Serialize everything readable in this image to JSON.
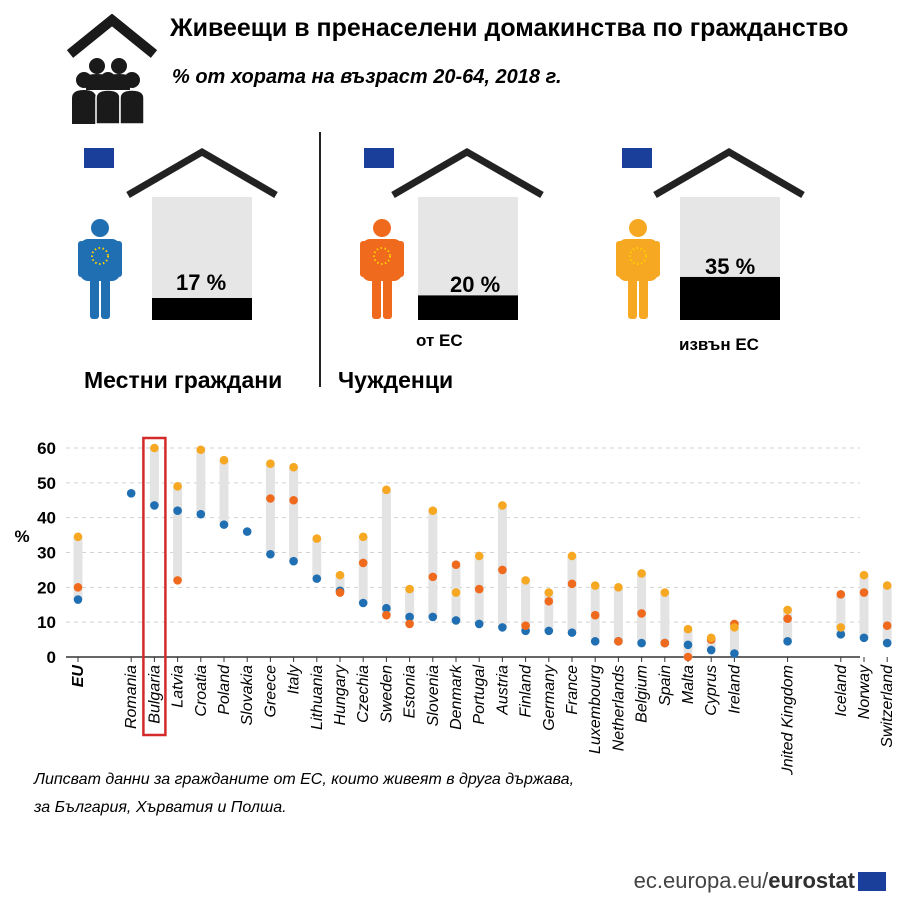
{
  "header": {
    "title": "Живеещи в пренаселени домакинства по гражданство",
    "subtitle": "% от хората на възраст 20-64, 2018 г."
  },
  "summary": {
    "groups": [
      {
        "label": "Местни граждани",
        "value_text": "17 %",
        "value": 17,
        "color": "#1f6fb2",
        "sublabel": ""
      },
      {
        "label": "Чужденци",
        "value_text": "20 %",
        "value": 20,
        "color": "#f06a1e",
        "sublabel": "от ЕС"
      },
      {
        "label": "",
        "value_text": "35 %",
        "value": 35,
        "color": "#f7a823",
        "sublabel": "извън ЕС"
      }
    ]
  },
  "chart_data": {
    "type": "scatter",
    "ylabel": "%",
    "ylim": [
      0,
      60
    ],
    "yticks": [
      0,
      10,
      20,
      30,
      40,
      50,
      60
    ],
    "grid": true,
    "highlight": "Bulgaria",
    "categories": [
      "EU",
      "Romania",
      "Bulgaria",
      "Latvia",
      "Croatia",
      "Poland",
      "Slovakia",
      "Greece",
      "Italy",
      "Lithuania",
      "Hungary",
      "Czechia",
      "Sweden",
      "Estonia",
      "Slovenia",
      "Denmark",
      "Portugal",
      "Austria",
      "Finland",
      "Germany",
      "France",
      "Luxembourg",
      "Netherlands",
      "Belgium",
      "Spain",
      "Malta",
      "Cyprus",
      "Ireland",
      "United Kingdom",
      "Iceland",
      "Norway",
      "Switzerland"
    ],
    "series": [
      {
        "key": "nationals",
        "color": "#1f6fb2",
        "values": [
          16.5,
          47,
          43.5,
          42,
          41,
          38,
          36,
          29.5,
          27.5,
          22.5,
          19,
          15.5,
          14,
          11.5,
          11.5,
          10.5,
          9.5,
          8.5,
          7.5,
          7.5,
          7,
          4.5,
          4.5,
          4,
          4,
          3.5,
          2,
          1,
          4.5,
          6.5,
          5.5,
          4
        ]
      },
      {
        "key": "eu_citizens",
        "color": "#f06a1e",
        "values": [
          20,
          null,
          null,
          22,
          null,
          null,
          null,
          45.5,
          45,
          null,
          18.5,
          27,
          12,
          9.5,
          23,
          26.5,
          19.5,
          25,
          9,
          16,
          21,
          12,
          4.5,
          12.5,
          4,
          0,
          5,
          9.5,
          11,
          18,
          18.5,
          9
        ]
      },
      {
        "key": "non_eu_citizens",
        "color": "#f7a823",
        "values": [
          34.5,
          null,
          60,
          49,
          59.5,
          56.5,
          null,
          55.5,
          54.5,
          34,
          23.5,
          34.5,
          48,
          19.5,
          42,
          18.5,
          29,
          43.5,
          22,
          18.5,
          29,
          20.5,
          20,
          24,
          18.5,
          8,
          5.5,
          8.5,
          13.5,
          8.5,
          23.5,
          20.5
        ]
      }
    ]
  },
  "notes": {
    "line1": "Липсват данни за гражданите от ЕС, които живеят в друга държава,",
    "line2": "за България, Хърватия и Полша."
  },
  "footer": {
    "site": "ec.europa.eu/",
    "brand": "eurostat"
  }
}
